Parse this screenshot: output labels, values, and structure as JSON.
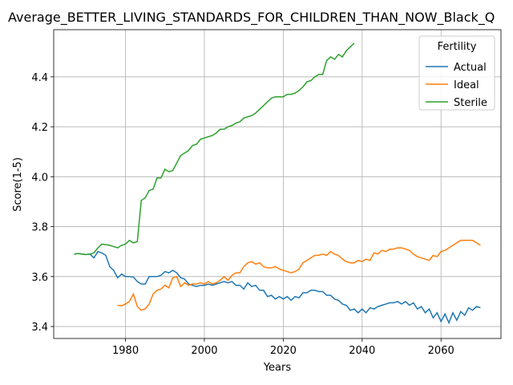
{
  "chart_data": {
    "type": "line",
    "title": "Average_BETTER_LIVING_STANDARDS_FOR_CHILDREN_THAN_NOW_Black_Q",
    "x_label": "Years",
    "y_label": "Score(1-5)",
    "legend_title": "Fertility",
    "legend": "upper right",
    "grid": true,
    "x": [
      1967,
      1968,
      1969,
      1970,
      1971,
      1972,
      1973,
      1974,
      1975,
      1976,
      1977,
      1978,
      1979,
      1980,
      1981,
      1982,
      1983,
      1984,
      1985,
      1986,
      1987,
      1988,
      1989,
      1990,
      1991,
      1992,
      1993,
      1994,
      1995,
      1996,
      1997,
      1998,
      1999,
      2000,
      2001,
      2002,
      2003,
      2004,
      2005,
      2006,
      2007,
      2008,
      2009,
      2010,
      2011,
      2012,
      2013,
      2014,
      2015,
      2016,
      2017,
      2018,
      2019,
      2020,
      2021,
      2022,
      2023,
      2024,
      2025,
      2026,
      2027,
      2028,
      2029,
      2030,
      2031,
      2032,
      2033,
      2034,
      2035,
      2036,
      2037,
      2038,
      2039,
      2040,
      2041,
      2042,
      2043,
      2044,
      2045,
      2046,
      2047,
      2048,
      2049,
      2050,
      2051,
      2052,
      2053,
      2054,
      2055,
      2056,
      2057,
      2058,
      2059,
      2060,
      2061,
      2062,
      2063,
      2064,
      2065,
      2066,
      2067,
      2068,
      2069,
      2070
    ],
    "series": [
      {
        "name": "Actual",
        "color": "#1f77b4",
        "values": [
          3.69,
          3.692,
          3.69,
          3.688,
          3.69,
          3.675,
          3.7,
          3.695,
          3.685,
          3.64,
          3.625,
          3.595,
          3.61,
          3.6,
          3.6,
          3.598,
          3.58,
          3.57,
          3.57,
          3.6,
          3.6,
          3.6,
          3.605,
          3.62,
          3.615,
          3.625,
          3.615,
          3.595,
          3.59,
          3.57,
          3.565,
          3.56,
          3.565,
          3.565,
          3.57,
          3.565,
          3.57,
          3.575,
          3.58,
          3.575,
          3.58,
          3.565,
          3.565,
          3.55,
          3.575,
          3.56,
          3.565,
          3.545,
          3.545,
          3.52,
          3.525,
          3.51,
          3.52,
          3.51,
          3.52,
          3.505,
          3.52,
          3.515,
          3.535,
          3.535,
          3.545,
          3.545,
          3.54,
          3.54,
          3.525,
          3.525,
          3.51,
          3.505,
          3.49,
          3.485,
          3.465,
          3.47,
          3.455,
          3.47,
          3.455,
          3.475,
          3.47,
          3.48,
          3.485,
          3.49,
          3.495,
          3.495,
          3.5,
          3.49,
          3.5,
          3.485,
          3.495,
          3.47,
          3.48,
          3.455,
          3.47,
          3.435,
          3.455,
          3.42,
          3.45,
          3.415,
          3.455,
          3.425,
          3.46,
          3.445,
          3.475,
          3.465,
          3.48,
          3.475
        ]
      },
      {
        "name": "Ideal",
        "color": "#ff7f0e",
        "values": [
          null,
          null,
          null,
          null,
          null,
          null,
          null,
          null,
          null,
          null,
          null,
          3.485,
          3.483,
          3.49,
          3.5,
          3.53,
          3.48,
          3.465,
          3.47,
          3.49,
          3.53,
          3.545,
          3.55,
          3.565,
          3.555,
          3.595,
          3.6,
          3.56,
          3.575,
          3.565,
          3.57,
          3.57,
          3.575,
          3.57,
          3.58,
          3.57,
          3.575,
          3.585,
          3.6,
          3.585,
          3.605,
          3.615,
          3.615,
          3.64,
          3.655,
          3.66,
          3.65,
          3.655,
          3.64,
          3.635,
          3.635,
          3.64,
          3.63,
          3.625,
          3.62,
          3.615,
          3.62,
          3.63,
          3.655,
          3.665,
          3.675,
          3.685,
          3.685,
          3.69,
          3.685,
          3.7,
          3.69,
          3.685,
          3.67,
          3.66,
          3.655,
          3.655,
          3.665,
          3.66,
          3.67,
          3.665,
          3.695,
          3.69,
          3.705,
          3.7,
          3.71,
          3.71,
          3.715,
          3.715,
          3.71,
          3.705,
          3.69,
          3.68,
          3.675,
          3.67,
          3.665,
          3.685,
          3.68,
          3.7,
          3.705,
          3.715,
          3.725,
          3.735,
          3.745,
          3.745,
          3.745,
          3.745,
          3.735,
          3.725
        ]
      },
      {
        "name": "Sterile",
        "color": "#2ca02c",
        "values": [
          3.69,
          3.692,
          3.69,
          3.688,
          3.69,
          3.695,
          3.715,
          3.73,
          3.728,
          3.725,
          3.72,
          3.715,
          3.725,
          3.73,
          3.745,
          3.735,
          3.74,
          3.905,
          3.915,
          3.945,
          3.95,
          3.995,
          3.995,
          4.03,
          4.02,
          4.025,
          4.055,
          4.085,
          4.095,
          4.105,
          4.125,
          4.13,
          4.15,
          4.155,
          4.16,
          4.165,
          4.175,
          4.19,
          4.19,
          4.2,
          4.205,
          4.215,
          4.22,
          4.235,
          4.24,
          4.245,
          4.255,
          4.27,
          4.285,
          4.3,
          4.315,
          4.32,
          4.32,
          4.32,
          4.33,
          4.33,
          4.335,
          4.345,
          4.36,
          4.38,
          4.385,
          4.4,
          4.41,
          4.41,
          4.465,
          4.48,
          4.47,
          4.49,
          4.48,
          4.505,
          4.52,
          4.535,
          null,
          null,
          null,
          null,
          null,
          null,
          null,
          null,
          null,
          null,
          null,
          null,
          null,
          null,
          null,
          null,
          null,
          null,
          null,
          null,
          null,
          null,
          null,
          null,
          null,
          null,
          null,
          null,
          null,
          null,
          null,
          null
        ]
      }
    ],
    "xlim": [
      1961.8,
      2075.2
    ],
    "xticks": [
      1980,
      2000,
      2020,
      2040,
      2060
    ],
    "ylim": [
      3.352,
      4.589
    ],
    "yticks": [
      3.4,
      3.6,
      3.8,
      {
        "value": 4,
        "label": "4.0"
      },
      4.2,
      4.4
    ]
  }
}
